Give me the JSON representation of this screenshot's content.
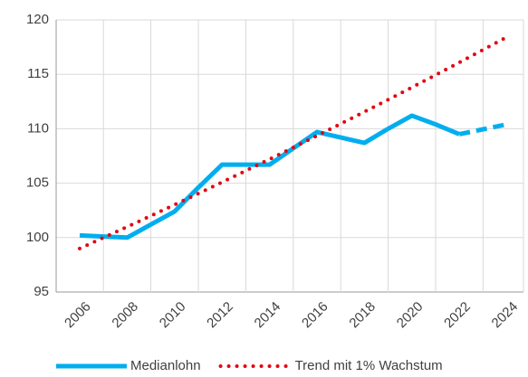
{
  "chart_data": {
    "type": "line",
    "categories": [
      "2006",
      null,
      "2008",
      null,
      "2010",
      null,
      "2012",
      null,
      "2014",
      null,
      "2016",
      null,
      "2018",
      null,
      "2020",
      null,
      "2022",
      null,
      "2024"
    ],
    "series": [
      {
        "name": "Medianlohn",
        "color": "#00aeef",
        "style": "solid",
        "dashed_from": 16,
        "values": [
          100.2,
          100.1,
          100.0,
          101.2,
          102.4,
          104.6,
          106.7,
          106.7,
          106.7,
          108.2,
          109.7,
          109.2,
          108.7,
          110.0,
          111.2,
          110.4,
          109.5,
          109.95,
          110.4
        ]
      },
      {
        "name": "Trend mit 1% Wachstum",
        "color": "#e30613",
        "style": "dotted",
        "values": [
          99.0,
          99.99,
          100.99,
          102.0,
          103.02,
          104.05,
          105.09,
          106.14,
          107.2,
          108.28,
          109.36,
          110.45,
          111.56,
          112.67,
          113.8,
          114.94,
          116.09,
          117.25,
          118.42
        ]
      }
    ],
    "ylim": [
      95,
      120
    ],
    "yticks": [
      95,
      100,
      105,
      110,
      115,
      120
    ],
    "grid": true,
    "legend": "bottom"
  }
}
